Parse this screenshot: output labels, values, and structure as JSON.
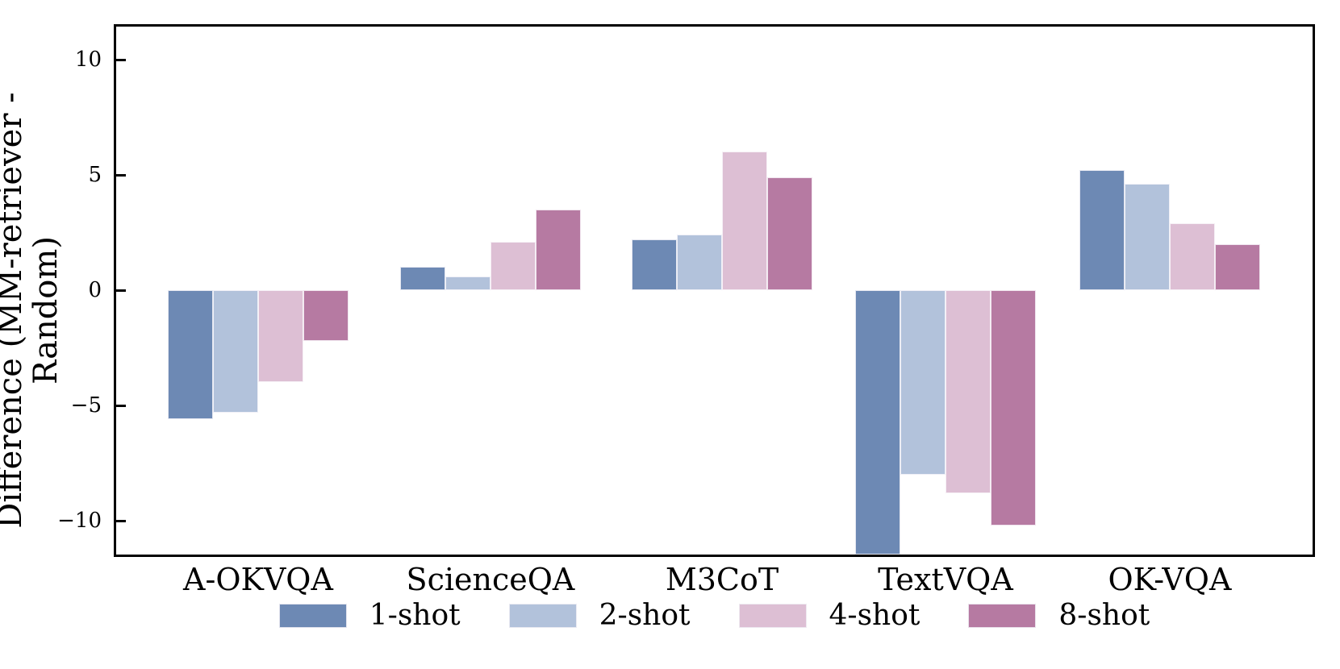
{
  "chart_data": {
    "type": "bar",
    "title": "",
    "xlabel": "",
    "ylabel": "Difference (MM-retriever - Random)",
    "categories": [
      "A-OKVQA",
      "ScienceQA",
      "M3CoT",
      "TextVQA",
      "OK-VQA"
    ],
    "series": [
      {
        "name": "1-shot",
        "color": "#6d89b4",
        "values": [
          -5.6,
          1.0,
          2.2,
          -11.5,
          5.2
        ]
      },
      {
        "name": "2-shot",
        "color": "#b2c2db",
        "values": [
          -5.3,
          0.6,
          2.4,
          -8.0,
          4.6
        ]
      },
      {
        "name": "4-shot",
        "color": "#ddbfd4",
        "values": [
          -4.0,
          2.1,
          6.0,
          -8.8,
          2.9
        ]
      },
      {
        "name": "8-shot",
        "color": "#b67aa2",
        "values": [
          -2.2,
          3.5,
          4.9,
          -10.2,
          2.0
        ]
      }
    ],
    "yticks": [
      -10,
      -5,
      0,
      5,
      10
    ],
    "ylim": [
      -11.55,
      11.6
    ],
    "grid": false,
    "legend_position": "bottom",
    "axis_color": "#000000",
    "background_color": "#ffffff"
  }
}
